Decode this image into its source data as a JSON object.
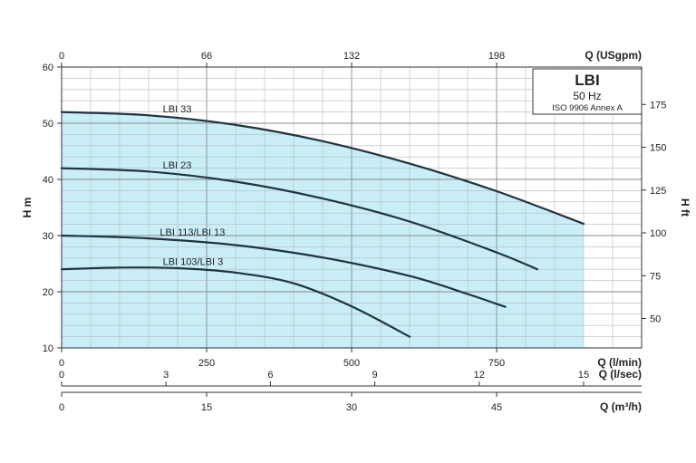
{
  "chart_data": {
    "type": "line",
    "title": "LBI",
    "subtitle": "50 Hz",
    "note": "ISO 9906 Annex A",
    "x": {
      "label": "Q (l/min)",
      "ticks": [
        0,
        250,
        500,
        750
      ],
      "range": [
        0,
        1000
      ]
    },
    "x_secondary": [
      {
        "label": "Q (USgpm)",
        "position": "top",
        "ticks": [
          0,
          66,
          132,
          198
        ],
        "per_l_min": 0.264
      },
      {
        "label": "Q (l/sec)",
        "position": "bottom",
        "ticks": [
          0,
          3,
          6,
          9,
          12,
          15
        ],
        "per_l_min": 0.016667
      },
      {
        "label": "Q (m³/h)",
        "position": "bottom",
        "ticks": [
          0,
          15,
          30,
          45
        ],
        "per_l_min": 0.06
      }
    ],
    "y": {
      "label": "H m",
      "ticks": [
        10,
        20,
        30,
        40,
        50,
        60
      ],
      "range": [
        10,
        60
      ]
    },
    "y_secondary": {
      "label": "H ft",
      "position": "right",
      "ticks": [
        50,
        75,
        100,
        125,
        150,
        175
      ],
      "per_m": 3.2808
    },
    "grid": true,
    "fill_color": "#c9eef8",
    "curve_color": "#1f3340",
    "series": [
      {
        "name": "LBI 33",
        "x": [
          0,
          150,
          300,
          450,
          600,
          750,
          900
        ],
        "y": [
          52,
          51.4,
          49.7,
          46.8,
          42.8,
          37.9,
          32.1
        ]
      },
      {
        "name": "LBI 23",
        "x": [
          0,
          150,
          300,
          450,
          600,
          750,
          820
        ],
        "y": [
          42,
          41.4,
          39.6,
          36.6,
          32.5,
          27,
          24
        ]
      },
      {
        "name": "LBI 113/LBI 13",
        "x": [
          0,
          150,
          300,
          450,
          600,
          700,
          765
        ],
        "y": [
          30,
          29.5,
          28.3,
          26.1,
          22.8,
          19.6,
          17.3
        ]
      },
      {
        "name": "LBI 103/LBI 3",
        "x": [
          0,
          100,
          200,
          300,
          400,
          500,
          600
        ],
        "y": [
          24,
          24.3,
          24.2,
          23.4,
          21.5,
          17.4,
          12
        ]
      }
    ]
  }
}
